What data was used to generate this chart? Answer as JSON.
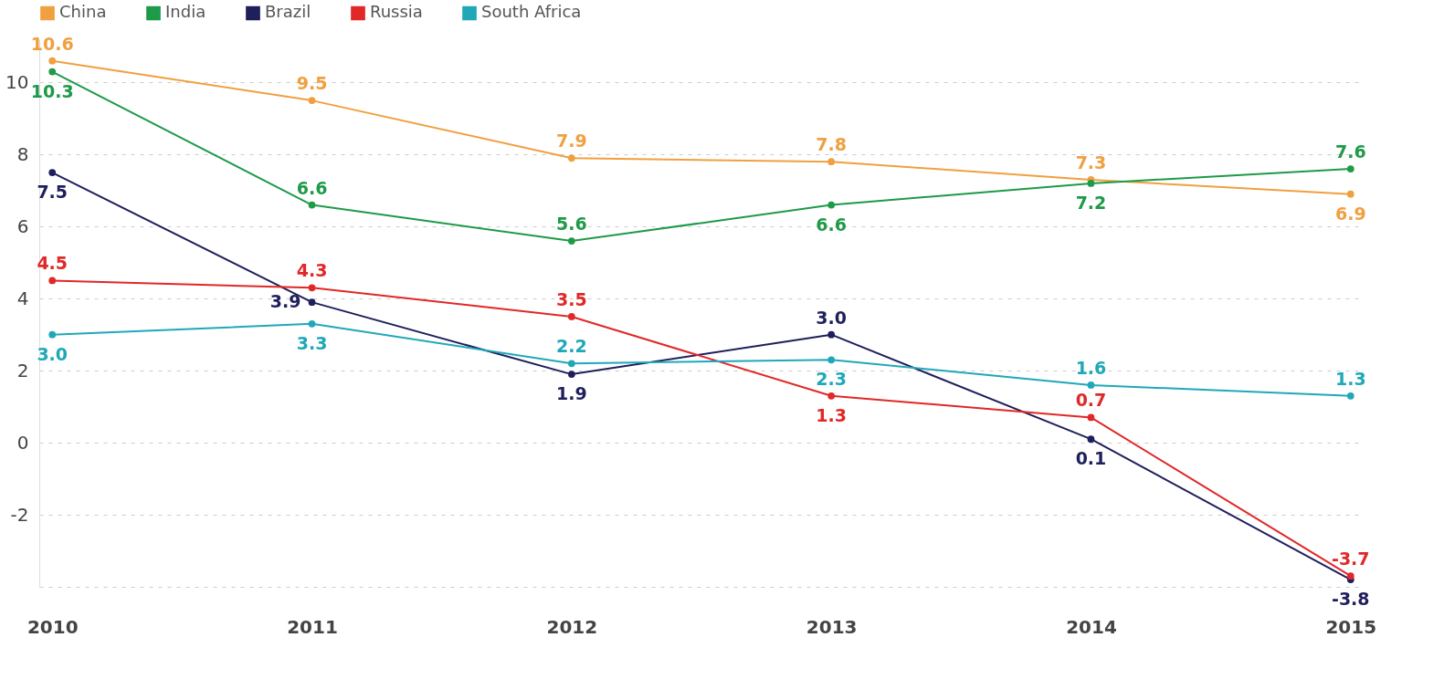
{
  "chart_data": {
    "type": "line",
    "categories": [
      "2010",
      "2011",
      "2012",
      "2013",
      "2014",
      "2015"
    ],
    "series": [
      {
        "name": "China",
        "color": "#f0a040",
        "values": [
          10.6,
          9.5,
          7.9,
          7.8,
          7.3,
          6.9
        ]
      },
      {
        "name": "India",
        "color": "#1e9a48",
        "values": [
          10.3,
          6.6,
          5.6,
          6.6,
          7.2,
          7.6
        ]
      },
      {
        "name": "Brazil",
        "color": "#1f1f5c",
        "values": [
          7.5,
          3.9,
          1.9,
          3.0,
          0.1,
          -3.8
        ],
        "value_labels": [
          "7.5",
          "3.9",
          "1.9",
          "3.0",
          "0.1",
          "-3.8"
        ]
      },
      {
        "name": "Russia",
        "color": "#e02828",
        "values": [
          4.5,
          4.3,
          3.5,
          1.3,
          0.7,
          -3.7
        ]
      },
      {
        "name": "South Africa",
        "color": "#20a8b8",
        "values": [
          3.0,
          3.3,
          2.2,
          2.3,
          1.6,
          1.3
        ],
        "value_labels": [
          "3.0",
          "3.3",
          "2.2",
          "2.3",
          "1.6",
          "1.3"
        ]
      }
    ],
    "ylim": [
      -4,
      11.2
    ],
    "yticks": [
      {
        "value": -4,
        "label": null
      },
      -2,
      0,
      2,
      4,
      6,
      8,
      10
    ],
    "grid": "y",
    "legend": "top",
    "marker": "circle",
    "line_style": "solid",
    "data_labels": true
  }
}
